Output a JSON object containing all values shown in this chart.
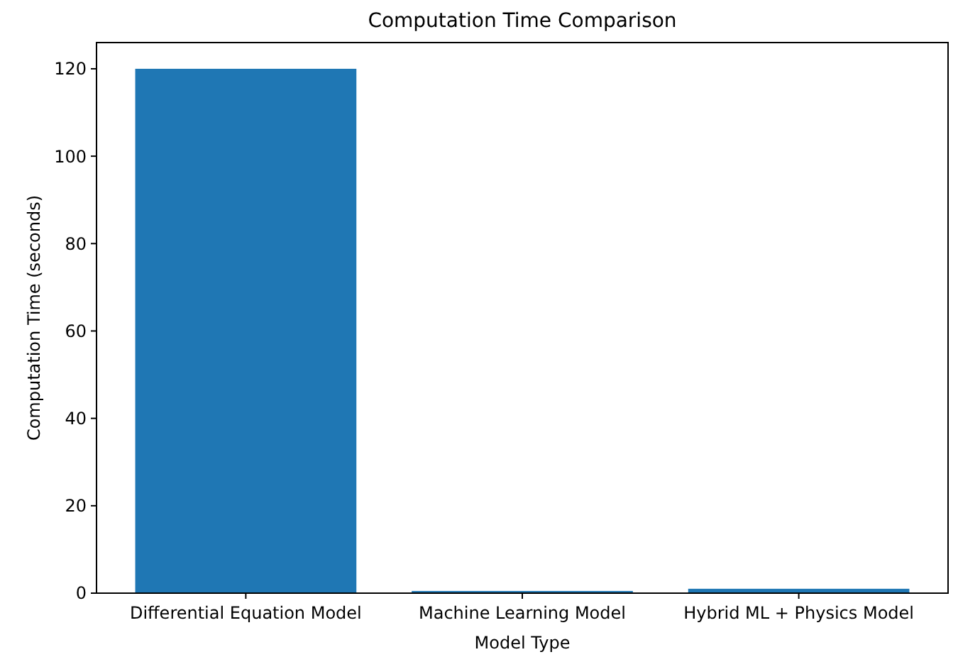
{
  "chart_data": {
    "type": "bar",
    "title": "Computation Time Comparison",
    "xlabel": "Model Type",
    "ylabel": "Computation Time (seconds)",
    "categories": [
      "Differential Equation Model",
      "Machine Learning Model",
      "Hybrid ML + Physics Model"
    ],
    "values": [
      120,
      0.5,
      1
    ],
    "color": "#1f77b4",
    "ylim": [
      0,
      126
    ],
    "yticks": [
      0,
      20,
      40,
      60,
      80,
      100,
      120
    ],
    "grid": false
  }
}
